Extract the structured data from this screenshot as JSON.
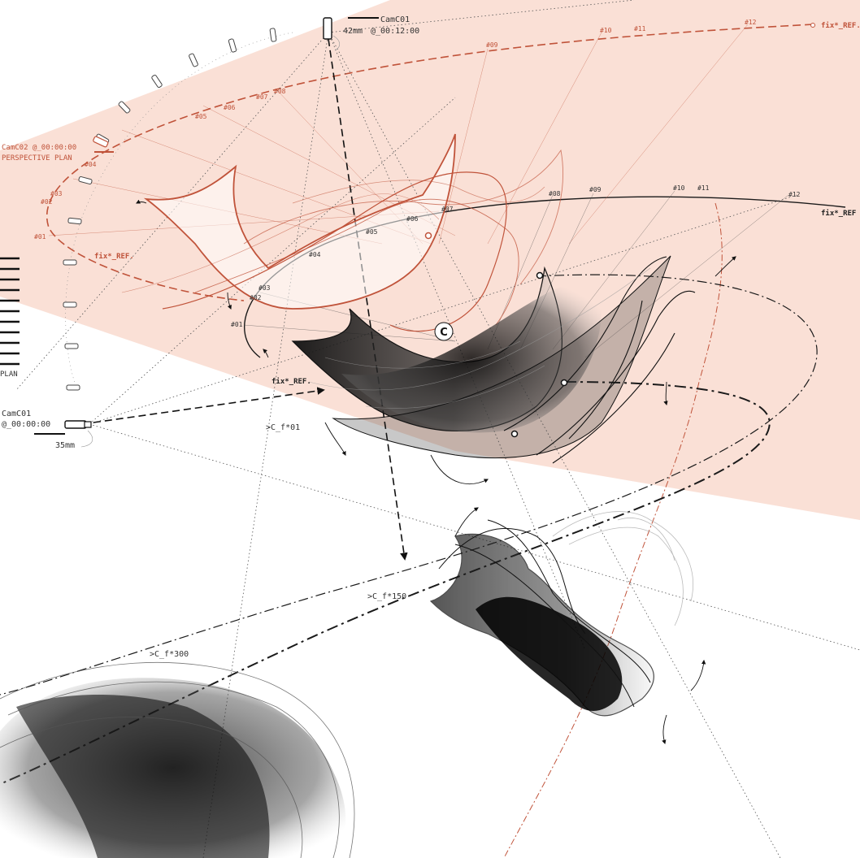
{
  "cameras": {
    "top": {
      "name": "CamC01",
      "time": "@_00:12:00",
      "focal": "42mm"
    },
    "left": {
      "name": "CamC01",
      "time": "@_00:00:00",
      "focal": "35mm"
    },
    "plan": {
      "name": "CamC02",
      "time": "@_00:00:00",
      "caption": "PERSPECTIVE PLAN"
    }
  },
  "plan_scale_label": "PLAN",
  "references": {
    "upper": "fix*_REF.",
    "middle": "fix*_REF.",
    "lower": "fix*_REF.",
    "mid_right": "fix*_REF"
  },
  "frames": {
    "f01": ">C_f*01",
    "f150": ">C_f*150",
    "f300": ">C_f*300"
  },
  "center_marker": "C",
  "path_labels_red": [
    "#01",
    "#02",
    "#03",
    "#04",
    "#05",
    "#06",
    "#07",
    "#08",
    "#09",
    "#10",
    "#11",
    "#12"
  ],
  "path_labels_dark": [
    "#01",
    "#02",
    "#03",
    "#04",
    "#05",
    "#06",
    "#07",
    "#08",
    "#09",
    "#10",
    "#11",
    "#12"
  ],
  "colors": {
    "plan_fill": "#f9ddd2",
    "accent_red": "#c0533a",
    "ink": "#1a1a1a"
  }
}
